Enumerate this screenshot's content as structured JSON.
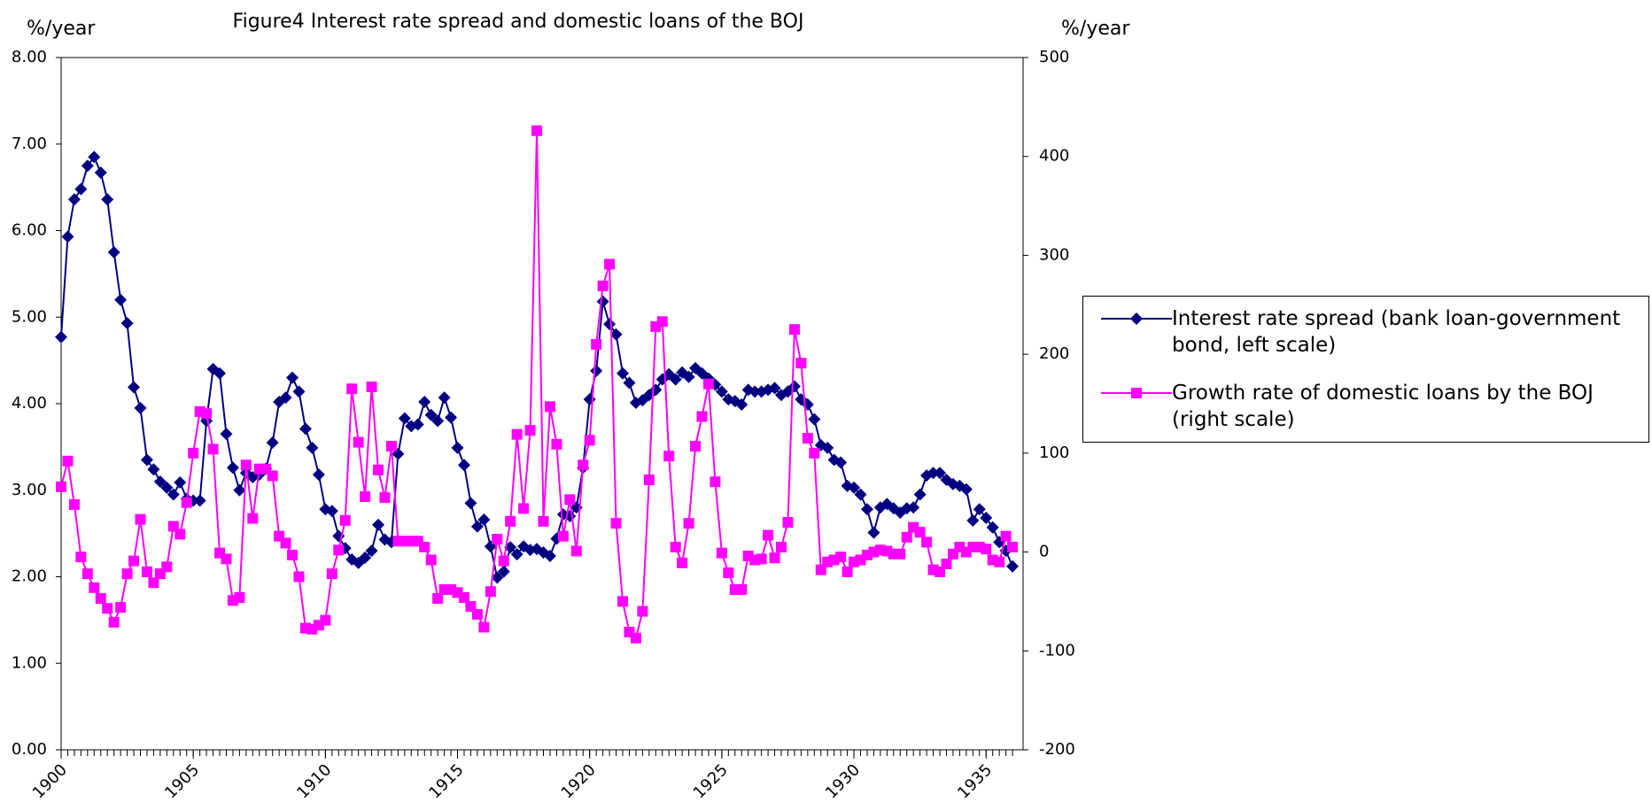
{
  "chart_data": {
    "type": "line",
    "title": "Figure4 Interest rate spread and domestic loans of the BOJ",
    "y_label": "%/year",
    "y2_label": "%/year",
    "x": [
      1900,
      1900.25,
      1900.5,
      1900.75,
      1901,
      1901.25,
      1901.5,
      1901.75,
      1902,
      1902.25,
      1902.5,
      1902.75,
      1903,
      1903.25,
      1903.5,
      1903.75,
      1904,
      1904.25,
      1904.5,
      1904.75,
      1905,
      1905.25,
      1905.5,
      1905.75,
      1906,
      1906.25,
      1906.5,
      1906.75,
      1907,
      1907.25,
      1907.5,
      1907.75,
      1908,
      1908.25,
      1908.5,
      1908.75,
      1909,
      1909.25,
      1909.5,
      1909.75,
      1910,
      1910.25,
      1910.5,
      1910.75,
      1911,
      1911.25,
      1911.5,
      1911.75,
      1912,
      1912.25,
      1912.5,
      1912.75,
      1913,
      1913.25,
      1913.5,
      1913.75,
      1914,
      1914.25,
      1914.5,
      1914.75,
      1915,
      1915.25,
      1915.5,
      1915.75,
      1916,
      1916.25,
      1916.5,
      1916.75,
      1917,
      1917.25,
      1917.5,
      1917.75,
      1918,
      1918.25,
      1918.5,
      1918.75,
      1919,
      1919.25,
      1919.5,
      1919.75,
      1920,
      1920.25,
      1920.5,
      1920.75,
      1921,
      1921.25,
      1921.5,
      1921.75,
      1922,
      1922.25,
      1922.5,
      1922.75,
      1923,
      1923.25,
      1923.5,
      1923.75,
      1924,
      1924.25,
      1924.5,
      1924.75,
      1925,
      1925.25,
      1925.5,
      1925.75,
      1926,
      1926.25,
      1926.5,
      1926.75,
      1927,
      1927.25,
      1927.5,
      1927.75,
      1928,
      1928.25,
      1928.5,
      1928.75,
      1929,
      1929.25,
      1929.5,
      1929.75,
      1930,
      1930.25,
      1930.5,
      1930.75,
      1931,
      1931.25,
      1931.5,
      1931.75,
      1932,
      1932.25,
      1932.5,
      1932.75,
      1933,
      1933.25,
      1933.5,
      1933.75,
      1934,
      1934.25,
      1934.5,
      1934.75,
      1935,
      1935.25,
      1935.5,
      1935.75,
      1936
    ],
    "xlim": [
      1900,
      1936.4
    ],
    "xticks": [
      1900,
      1905,
      1910,
      1915,
      1920,
      1925,
      1930,
      1935
    ],
    "ylim": [
      0,
      8
    ],
    "yticks": [
      {
        "value": 0,
        "label": "0.00"
      },
      {
        "value": 1,
        "label": "1.00"
      },
      {
        "value": 2,
        "label": "2.00"
      },
      {
        "value": 3,
        "label": "3.00"
      },
      {
        "value": 4,
        "label": "4.00"
      },
      {
        "value": 5,
        "label": "5.00"
      },
      {
        "value": 6,
        "label": "6.00"
      },
      {
        "value": 7,
        "label": "7.00"
      },
      {
        "value": 8,
        "label": "8.00"
      }
    ],
    "y2lim": [
      -200,
      500
    ],
    "y2ticks": [
      -200,
      -100,
      0,
      100,
      200,
      300,
      400,
      500
    ],
    "series": [
      {
        "name": "Interest rate spread (bank loan-government bond, left scale)",
        "color": "#000080",
        "marker": "diamond",
        "values": [
          4.77,
          5.93,
          6.36,
          6.48,
          6.75,
          6.85,
          6.67,
          6.36,
          5.75,
          5.2,
          4.93,
          4.19,
          3.95,
          3.35,
          3.24,
          3.1,
          3.03,
          2.95,
          3.09,
          2.9,
          2.88,
          2.88,
          3.8,
          4.4,
          4.35,
          3.65,
          3.26,
          3.0,
          3.2,
          3.15,
          3.18,
          3.25,
          3.55,
          4.02,
          4.07,
          4.3,
          4.14,
          3.71,
          3.49,
          3.18,
          2.78,
          2.76,
          2.47,
          2.33,
          2.2,
          2.16,
          2.22,
          2.3,
          2.6,
          2.43,
          2.4,
          3.42,
          3.83,
          3.74,
          3.76,
          4.02,
          3.87,
          3.8,
          4.07,
          3.84,
          3.49,
          3.29,
          2.85,
          2.58,
          2.66,
          2.35,
          1.99,
          2.06,
          2.34,
          2.26,
          2.35,
          2.31,
          2.32,
          2.28,
          2.24,
          2.44,
          2.72,
          2.7,
          2.8,
          3.26,
          4.05,
          4.38,
          5.18,
          4.92,
          4.8,
          4.35,
          4.24,
          4.01,
          4.04,
          4.1,
          4.16,
          4.28,
          4.34,
          4.28,
          4.36,
          4.31,
          4.41,
          4.35,
          4.29,
          4.22,
          4.14,
          4.05,
          4.03,
          3.99,
          4.16,
          4.14,
          4.14,
          4.16,
          4.18,
          4.1,
          4.14,
          4.2,
          4.05,
          3.99,
          3.82,
          3.52,
          3.49,
          3.35,
          3.32,
          3.05,
          3.03,
          2.95,
          2.78,
          2.51,
          2.8,
          2.84,
          2.79,
          2.74,
          2.79,
          2.8,
          2.95,
          3.17,
          3.2,
          3.2,
          3.12,
          3.07,
          3.05,
          3.01,
          2.65,
          2.78,
          2.68,
          2.57,
          2.4,
          2.3,
          2.12
        ]
      },
      {
        "name": "Growth rate of domestic loans by the BOJ (right scale)",
        "color": "#ff00ff",
        "marker": "square",
        "axis": "y2",
        "values": [
          66,
          92,
          48,
          -5,
          -22,
          -36,
          -47,
          -57,
          -71,
          -56,
          -22,
          -9,
          33,
          -20,
          -31,
          -22,
          -15,
          26,
          18,
          50,
          100,
          142,
          140,
          104,
          -1,
          -7,
          -49,
          -46,
          88,
          34,
          84,
          84,
          77,
          16,
          9,
          -3,
          -25,
          -77,
          -78,
          -74,
          -69,
          -22,
          2,
          32,
          165,
          111,
          56,
          167,
          83,
          55,
          107,
          11,
          11,
          11,
          11,
          5,
          -8,
          -47,
          -38,
          -38,
          -41,
          -46,
          -55,
          -63,
          -76,
          -40,
          13,
          -9,
          31,
          119,
          44,
          123,
          426,
          31,
          147,
          109,
          16,
          53,
          1,
          88,
          113,
          210,
          269,
          291,
          29,
          -50,
          -81,
          -87,
          -60,
          73,
          228,
          233,
          97,
          5,
          -11,
          29,
          107,
          137,
          170,
          71,
          -1,
          -21,
          -38,
          -38,
          -4,
          -8,
          -7,
          17,
          -6,
          5,
          30,
          225,
          191,
          115,
          100,
          -18,
          -10,
          -8,
          -5,
          -20,
          -10,
          -8,
          -3,
          0,
          2,
          1,
          -2,
          -2,
          15,
          25,
          20,
          10,
          -18,
          -20,
          -12,
          -2,
          5,
          0,
          5,
          5,
          3,
          -8,
          -10,
          16,
          5
        ]
      }
    ],
    "legend": "right"
  }
}
